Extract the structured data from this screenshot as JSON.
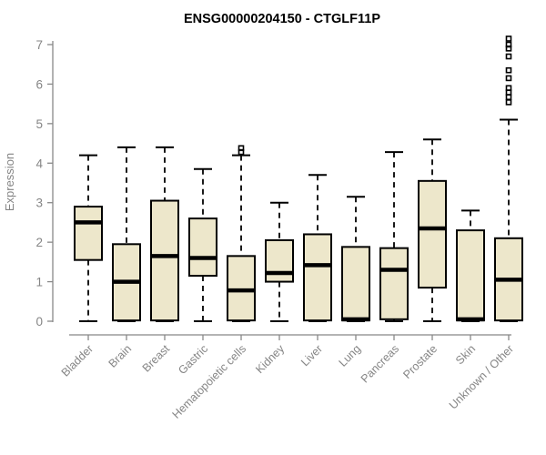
{
  "chart_data": {
    "type": "boxplot",
    "title": "ENSG00000204150 - CTGLF11P",
    "ylabel": "Expression",
    "xlabel": "",
    "ylim": [
      0,
      7
    ],
    "yticks": [
      0,
      1,
      2,
      3,
      4,
      5,
      6,
      7
    ],
    "grid": false,
    "legend": "none",
    "categories": [
      "Bladder",
      "Brain",
      "Breast",
      "Gastric",
      "Hematopoietic cells",
      "Kidney",
      "Liver",
      "Lung",
      "Pancreas",
      "Prostate",
      "Skin",
      "Unknown / Other"
    ],
    "series": [
      {
        "name": "Bladder",
        "low": 0,
        "q1": 1.55,
        "median": 2.5,
        "q3": 2.9,
        "high": 4.2,
        "outliers": []
      },
      {
        "name": "Brain",
        "low": 0,
        "q1": 0.02,
        "median": 1.0,
        "q3": 1.95,
        "high": 4.4,
        "outliers": []
      },
      {
        "name": "Breast",
        "low": 0,
        "q1": 0.02,
        "median": 1.65,
        "q3": 3.05,
        "high": 4.4,
        "outliers": []
      },
      {
        "name": "Gastric",
        "low": 0,
        "q1": 1.15,
        "median": 1.6,
        "q3": 2.6,
        "high": 3.85,
        "outliers": []
      },
      {
        "name": "Hematopoietic cells",
        "low": 0,
        "q1": 0.02,
        "median": 0.78,
        "q3": 1.65,
        "high": 4.2,
        "outliers": [
          4.28,
          4.38
        ]
      },
      {
        "name": "Kidney",
        "low": 0,
        "q1": 1.0,
        "median": 1.22,
        "q3": 2.05,
        "high": 3.0,
        "outliers": []
      },
      {
        "name": "Liver",
        "low": 0,
        "q1": 0.02,
        "median": 1.42,
        "q3": 2.2,
        "high": 3.7,
        "outliers": []
      },
      {
        "name": "Lung",
        "low": 0,
        "q1": 0.02,
        "median": 0.05,
        "q3": 1.88,
        "high": 3.15,
        "outliers": []
      },
      {
        "name": "Pancreas",
        "low": 0,
        "q1": 0.05,
        "median": 1.3,
        "q3": 1.85,
        "high": 4.28,
        "outliers": []
      },
      {
        "name": "Prostate",
        "low": 0,
        "q1": 0.85,
        "median": 2.35,
        "q3": 3.55,
        "high": 4.6,
        "outliers": []
      },
      {
        "name": "Skin",
        "low": 0,
        "q1": 0.02,
        "median": 0.05,
        "q3": 2.3,
        "high": 2.8,
        "outliers": []
      },
      {
        "name": "Unknown / Other",
        "low": 0,
        "q1": 0.02,
        "median": 1.05,
        "q3": 2.1,
        "high": 5.1,
        "outliers": [
          5.54,
          5.67,
          5.79,
          5.9,
          6.15,
          6.35,
          6.7,
          6.9,
          7.0,
          7.15
        ]
      }
    ]
  },
  "colors": {
    "box_fill": "#EDE7CB",
    "box_stroke": "#000000",
    "median": "#000000",
    "whisker": "#000000",
    "outlier": "#000000",
    "axis": "#888888",
    "tick_label": "#858585",
    "axis_label": "#858585",
    "title": "#000000",
    "background": "#ffffff"
  }
}
